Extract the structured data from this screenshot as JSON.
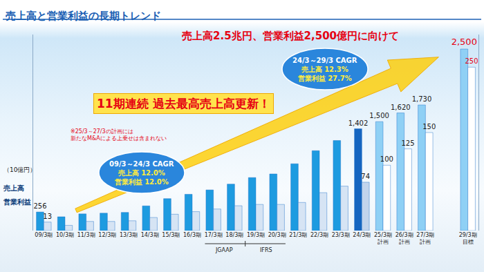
{
  "chart_data": {
    "type": "bar",
    "title": "売上高と営業利益の長期トレンド",
    "subtitle": "売上高2.5兆円、営業利益2,500億円に向けて",
    "headline": "11期連続 過去最高売上高更新！",
    "note": [
      "※25/3～27/3の計画には",
      "新たなM&Aによる上乗せは含まれない"
    ],
    "unit_label": "（10億円）",
    "cagr_boxes": [
      {
        "title": "09/3～24/3 CAGR",
        "lines": [
          "売上高 12.0%",
          "営業利益 12.0%"
        ]
      },
      {
        "title": "24/3～29/3 CAGR",
        "lines": [
          "売上高 12.3%",
          "営業利益 27.7%"
        ]
      }
    ],
    "period_labels": [
      {
        "label": "JGAAP",
        "from": "17/3期",
        "to": "18/3期"
      },
      {
        "label": "IFRS",
        "from": "19/3期",
        "to": "20/3期"
      }
    ],
    "categories": [
      "09/3期",
      "10/3期",
      "11/3期",
      "12/3期",
      "13/3期",
      "14/3期",
      "15/3期",
      "16/3期",
      "17/3期",
      "18/3期",
      "19/3期",
      "20/3期",
      "21/3期",
      "22/3期",
      "23/3期",
      "24/3期",
      "25/3期\n計画",
      "26/3期\n計画",
      "27/3期\n計画",
      null,
      "29/3期\n目標"
    ],
    "series": [
      {
        "name": "売上高",
        "axis": "y",
        "values": [
          256,
          190,
          230,
          240,
          250,
          340,
          440,
          500,
          560,
          640,
          730,
          780,
          920,
          1100,
          1240,
          1402,
          1500,
          1620,
          1730,
          null,
          2500
        ],
        "value_labels": [
          "256",
          null,
          null,
          null,
          null,
          null,
          null,
          null,
          null,
          null,
          null,
          null,
          null,
          null,
          null,
          "1,402",
          "1,500",
          "1,620",
          "1,730",
          null,
          "2,500"
        ],
        "colors": [
          "#1e9be0",
          "#1e9be0",
          "#1e9be0",
          "#1e9be0",
          "#1e9be0",
          "#1e9be0",
          "#1e9be0",
          "#1e9be0",
          "#1e9be0",
          "#1e9be0",
          "#1e9be0",
          "#1e9be0",
          "#1e9be0",
          "#1e9be0",
          "#1e9be0",
          "#1565c0",
          "#8fd0f5",
          "#8fd0f5",
          "#8fd0f5",
          "#8fd0f5",
          "#8fd0f5"
        ]
      },
      {
        "name": "営業利益",
        "axis": "y2",
        "values": [
          13,
          8,
          14,
          14,
          15,
          20,
          25,
          29,
          33,
          38,
          40,
          40,
          43,
          58,
          68,
          74,
          100,
          125,
          150,
          null,
          250
        ],
        "value_labels": [
          "13",
          null,
          null,
          null,
          null,
          null,
          null,
          null,
          null,
          null,
          null,
          null,
          null,
          null,
          null,
          "74",
          "100",
          "125",
          "150",
          null,
          "250"
        ],
        "colors": [
          "#d6e4f4",
          "#d6e4f4",
          "#d6e4f4",
          "#d6e4f4",
          "#d6e4f4",
          "#d6e4f4",
          "#d6e4f4",
          "#d6e4f4",
          "#d6e4f4",
          "#d6e4f4",
          "#d6e4f4",
          "#d6e4f4",
          "#d6e4f4",
          "#d6e4f4",
          "#d6e4f4",
          "#c2d4ec",
          "#ffffff",
          "#ffffff",
          "#ffffff",
          "#ffffff",
          "#ffffff"
        ]
      }
    ],
    "ylim": [
      0,
      2700
    ],
    "y2lim": [
      0,
      300
    ],
    "tick_labels": "x",
    "grid": false
  }
}
